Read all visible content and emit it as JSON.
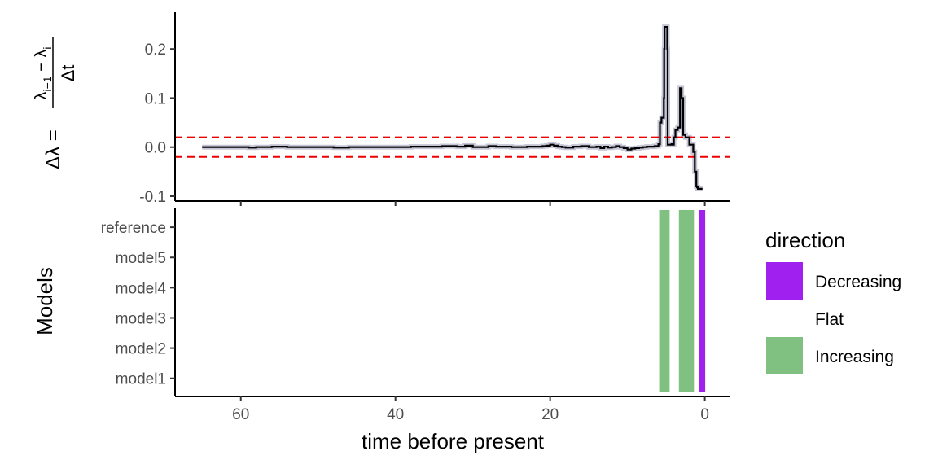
{
  "chart_data": [
    {
      "type": "line",
      "panel": "top",
      "ylabel_parts": {
        "delta_lambda": "Δλ =",
        "numerator": "λ",
        "sub1": "i−1",
        "minus": " − λ",
        "sub2": "i",
        "denominator": "Δt"
      },
      "xlim": [
        68.5,
        -3.2
      ],
      "ylim": [
        -0.11,
        0.275
      ],
      "yticks": [
        -0.1,
        0.0,
        0.1,
        0.2
      ],
      "ytick_labels": [
        "-0.1",
        "0.0",
        "0.1",
        "0.2"
      ],
      "thresholds": [
        0.02,
        -0.02
      ],
      "threshold_color": "#ee0000",
      "line_color": "#000000",
      "ribbon_color": "#b7b7cc",
      "series": [
        {
          "x": [
            65.0,
            62.0,
            59.0,
            58.0,
            56.0,
            54.0,
            52.0,
            50.0,
            48.0,
            46.0,
            44.0,
            42.0,
            40.0,
            38.0,
            36.0,
            34.0,
            32.0,
            31.0,
            30.0,
            29.0,
            28.0,
            27.0,
            25.0,
            24.0,
            23.0,
            22.0,
            21.0,
            20.5,
            20.0,
            19.5,
            19.0,
            18.5,
            18.0,
            17.0,
            16.0,
            15.0,
            14.0,
            13.5,
            13.0,
            12.5,
            12.0,
            11.5,
            11.0,
            10.5,
            10.0,
            9.5,
            9.0,
            8.5,
            8.0,
            7.5,
            7.0,
            6.5,
            6.0,
            5.8,
            5.7,
            5.6,
            5.3,
            5.25,
            5.2,
            5.0,
            4.85,
            4.8,
            4.5,
            4.3,
            4.2,
            4.0,
            3.8,
            3.5,
            3.2,
            3.1,
            3.0,
            2.8,
            2.6,
            2.5,
            2.3,
            2.0,
            1.8,
            1.5,
            1.3,
            1.1,
            1.0,
            0.9,
            0.8,
            0.7,
            0.6,
            0.5,
            0.4,
            0.3
          ],
          "y": [
            0.0,
            0.0,
            -0.001,
            0.0,
            0.001,
            0.0,
            0.0,
            0.0,
            -0.001,
            0.0,
            0.0,
            0.0,
            0.0,
            0.001,
            0.001,
            0.002,
            0.001,
            0.003,
            0.0,
            0.0,
            0.002,
            0.001,
            0.0,
            0.0,
            0.001,
            0.001,
            0.002,
            0.003,
            0.005,
            0.003,
            0.001,
            0.0,
            -0.001,
            0.001,
            0.002,
            0.0,
            0.001,
            -0.002,
            0.001,
            -0.001,
            0.0,
            0.002,
            0.0,
            -0.002,
            -0.005,
            -0.003,
            -0.002,
            -0.001,
            0.0,
            0.001,
            0.001,
            0.002,
            0.006,
            0.05,
            0.05,
            0.06,
            0.1,
            0.2,
            0.245,
            0.245,
            0.2,
            0.005,
            0.005,
            0.006,
            0.005,
            0.02,
            0.035,
            0.04,
            0.12,
            0.12,
            0.1,
            0.025,
            0.025,
            0.02,
            0.02,
            0.005,
            0.005,
            -0.01,
            -0.05,
            -0.08,
            -0.082,
            -0.085,
            -0.085,
            -0.085,
            -0.085,
            -0.085,
            -0.085,
            -0.085
          ]
        }
      ]
    },
    {
      "type": "bar",
      "panel": "bottom",
      "ylabel": "Models",
      "xlabel": "time before present",
      "categories": [
        "model1",
        "model2",
        "model3",
        "model4",
        "model5",
        "reference"
      ],
      "xticks": [
        60,
        40,
        20,
        0
      ],
      "xtick_labels": [
        "60",
        "40",
        "20",
        "0"
      ],
      "intervals": [
        {
          "x_start": 5.9,
          "x_end": 4.55,
          "direction": "Increasing"
        },
        {
          "x_start": 3.35,
          "x_end": 1.4,
          "direction": "Increasing"
        },
        {
          "x_start": 0.75,
          "x_end": -0.05,
          "direction": "Decreasing"
        }
      ],
      "colors": {
        "Decreasing": "#a020f0",
        "Flat": "#ffffff",
        "Increasing": "#80c080"
      }
    }
  ],
  "legend": {
    "title": "direction",
    "items": [
      {
        "label": "Decreasing",
        "color": "#a020f0"
      },
      {
        "label": "Flat",
        "color": "#ffffff"
      },
      {
        "label": "Increasing",
        "color": "#80c080"
      }
    ]
  }
}
